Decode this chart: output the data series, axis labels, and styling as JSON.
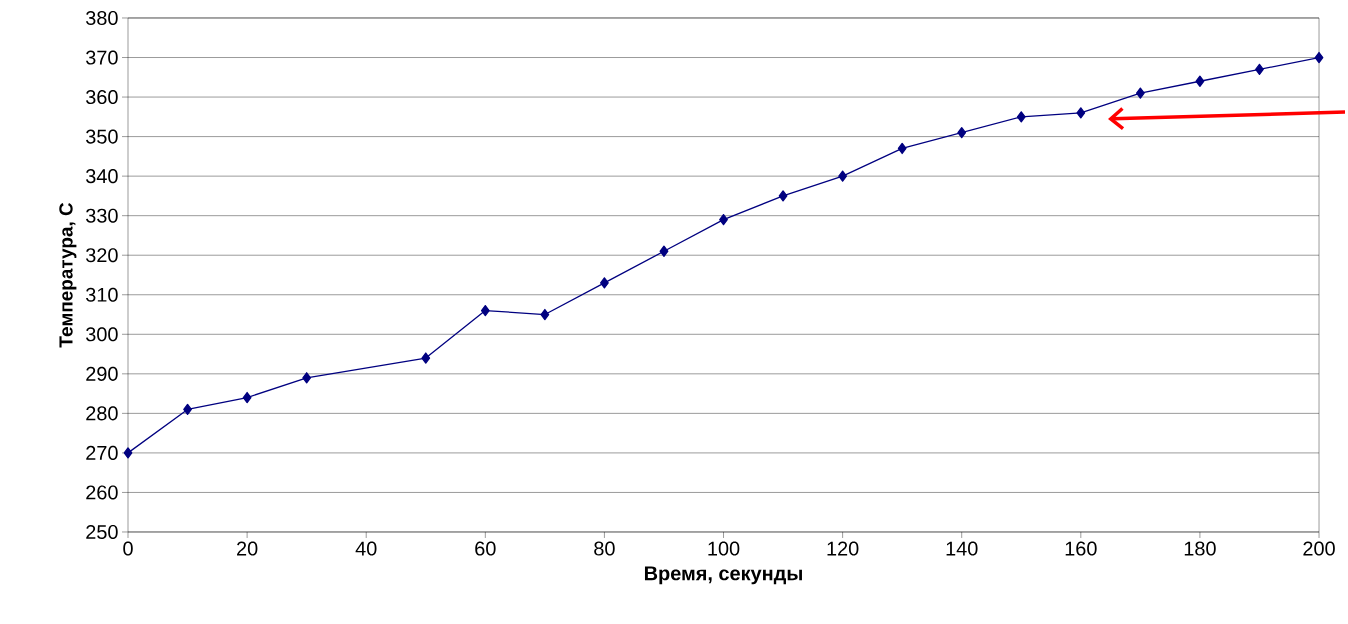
{
  "chart_data": {
    "type": "line",
    "xlabel": "Время, секунды",
    "ylabel": "Температура, С",
    "x": [
      0,
      10,
      20,
      30,
      50,
      60,
      70,
      80,
      90,
      100,
      110,
      120,
      130,
      140,
      150,
      160,
      170,
      180,
      190,
      200
    ],
    "series": [
      {
        "color": "#000080",
        "values": [
          270,
          281,
          284,
          289,
          294,
          306,
          305,
          313,
          321,
          329,
          335,
          340,
          347,
          351,
          355,
          356,
          361,
          364,
          367,
          370
        ]
      }
    ],
    "xlim": [
      0,
      200
    ],
    "ylim": [
      250,
      380
    ],
    "xticks": [
      0,
      20,
      40,
      60,
      80,
      100,
      120,
      140,
      160,
      180,
      200
    ],
    "yticks": [
      250,
      260,
      270,
      280,
      290,
      300,
      310,
      320,
      330,
      340,
      350,
      360,
      370,
      380
    ],
    "grid": "y",
    "marker": "diamond",
    "line_style": "solid"
  }
}
